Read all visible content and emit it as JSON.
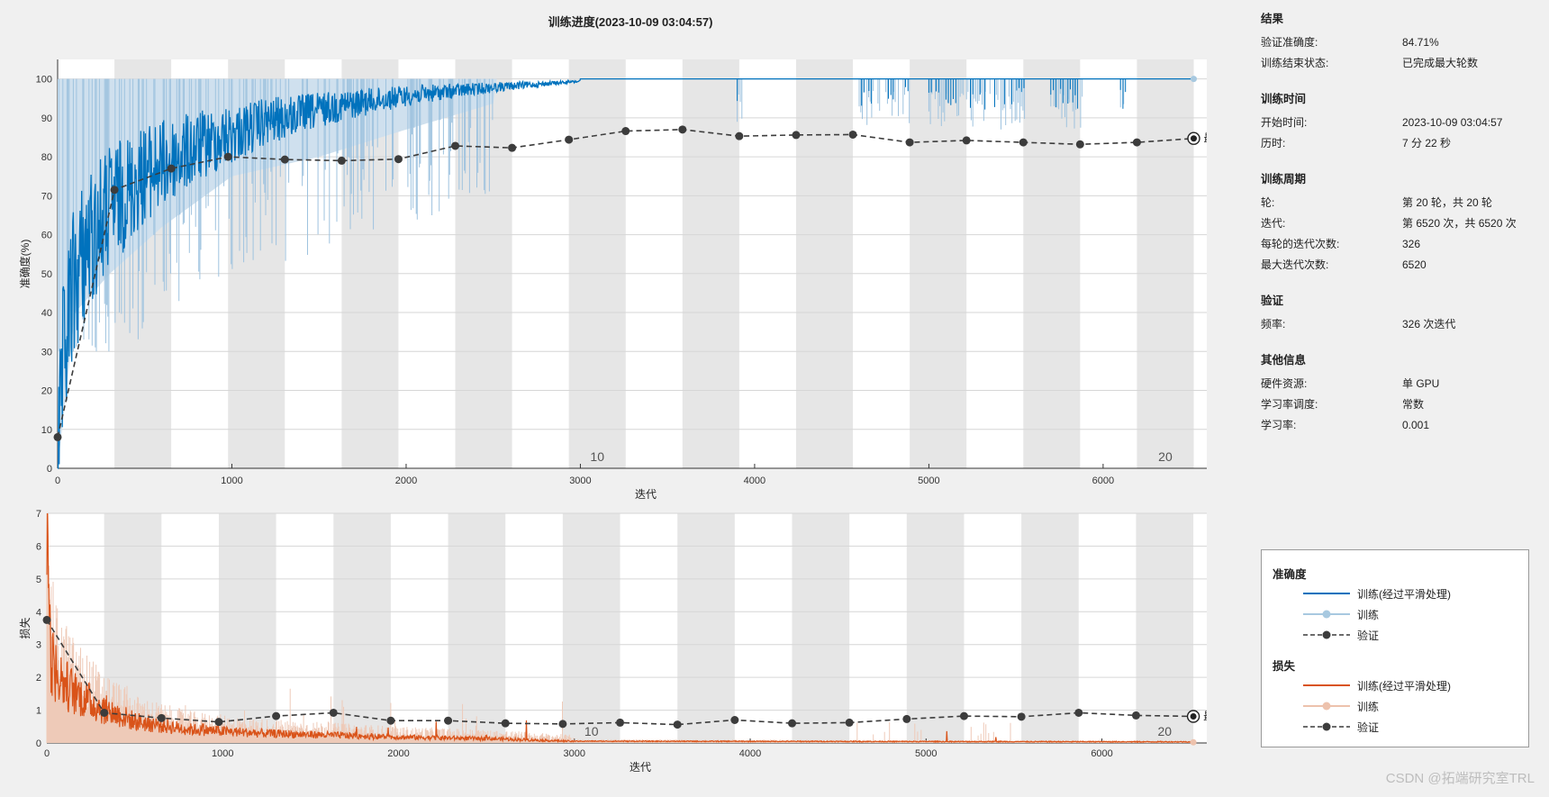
{
  "window": {
    "title": "训练进度(2023-10-09 03:04:57)"
  },
  "info_panel": {
    "sections": [
      {
        "title": "结果",
        "rows": [
          {
            "label": "验证准确度:",
            "value": "84.71%"
          },
          {
            "label": "训练结束状态:",
            "value": "已完成最大轮数"
          }
        ]
      },
      {
        "title": "训练时间",
        "rows": [
          {
            "label": "开始时间:",
            "value": "2023-10-09 03:04:57"
          },
          {
            "label": "历时:",
            "value": "7 分 22 秒"
          }
        ]
      },
      {
        "title": "训练周期",
        "rows": [
          {
            "label": "轮:",
            "value": "第 20 轮，共 20 轮"
          },
          {
            "label": "迭代:",
            "value": "第 6520 次，共 6520 次"
          },
          {
            "label": "每轮的迭代次数:",
            "value": "326"
          },
          {
            "label": "最大迭代次数:",
            "value": "6520"
          }
        ]
      },
      {
        "title": "验证",
        "rows": [
          {
            "label": "频率:",
            "value": "326 次迭代"
          }
        ]
      },
      {
        "title": "其他信息",
        "rows": [
          {
            "label": "硬件资源:",
            "value": "单 GPU"
          },
          {
            "label": "学习率调度:",
            "value": "常数"
          },
          {
            "label": "学习率:",
            "value": "0.001"
          }
        ]
      }
    ]
  },
  "legend": {
    "accuracy_title": "准确度",
    "loss_title": "损失",
    "train_smoothed": "训练(经过平滑处理)",
    "train": "训练",
    "validation": "验证",
    "colors": {
      "acc_smoothed": "#0072bd",
      "acc_raw": "#a8c9e0",
      "loss_smoothed": "#d95319",
      "loss_raw": "#edc2ad",
      "validation": "#3c3c3c"
    }
  },
  "watermark": "CSDN @拓端研究室TRL",
  "chart_data": [
    {
      "id": "accuracy",
      "type": "line",
      "title": "训练进度(2023-10-09 03:04:57)",
      "xlabel": "迭代",
      "ylabel": "准确度(%)",
      "xlim": [
        0,
        6750
      ],
      "ylim": [
        0,
        105
      ],
      "xticks": [
        0,
        1000,
        2000,
        3000,
        4000,
        5000,
        6000
      ],
      "yticks": [
        0,
        10,
        20,
        30,
        40,
        50,
        60,
        70,
        80,
        90,
        100
      ],
      "iterations_per_epoch": 326,
      "epochs": 20,
      "epoch_labels": [
        {
          "epoch": 10,
          "text": "10"
        },
        {
          "epoch": 20,
          "text": "20"
        }
      ],
      "final_label": "最终",
      "validation": {
        "x": [
          0,
          326,
          652,
          978,
          1304,
          1630,
          1956,
          2282,
          2608,
          2934,
          3260,
          3586,
          3912,
          4238,
          4564,
          4890,
          5216,
          5542,
          5868,
          6194,
          6520
        ],
        "y": [
          8,
          71.5,
          77,
          80,
          79.3,
          79,
          79.4,
          82.8,
          82.3,
          84.4,
          86.6,
          87,
          85.3,
          85.6,
          85.7,
          83.7,
          84.2,
          83.7,
          83.2,
          83.7,
          84.71
        ]
      },
      "train_smoothed_anchors": {
        "x": [
          0,
          30,
          80,
          150,
          300,
          500,
          800,
          1200,
          1600,
          2000,
          2500,
          3000,
          3500,
          6520
        ],
        "y": [
          5,
          35,
          55,
          65,
          75,
          82,
          87,
          92,
          95,
          97,
          98.5,
          99.5,
          100,
          100
        ]
      },
      "train_raw_band": {
        "x": [
          0,
          100,
          300,
          600,
          1000,
          1500,
          2000,
          2600,
          3000,
          6520
        ],
        "min": [
          0,
          40,
          50,
          62,
          75,
          80,
          87,
          95,
          100,
          100
        ]
      },
      "dip_regions": [
        [
          3900,
          3930
        ],
        [
          4600,
          4900
        ],
        [
          5000,
          5550
        ],
        [
          5700,
          5880
        ],
        [
          6100,
          6130
        ]
      ]
    },
    {
      "id": "loss",
      "type": "line",
      "xlabel": "迭代",
      "ylabel": "损失",
      "xlim": [
        0,
        6750
      ],
      "ylim": [
        0,
        7
      ],
      "xticks": [
        0,
        1000,
        2000,
        3000,
        4000,
        5000,
        6000
      ],
      "yticks": [
        0,
        1,
        2,
        3,
        4,
        5,
        6,
        7
      ],
      "iterations_per_epoch": 326,
      "epochs": 20,
      "epoch_labels": [
        {
          "epoch": 10,
          "text": "10"
        },
        {
          "epoch": 20,
          "text": "20"
        }
      ],
      "final_label": "最终",
      "validation": {
        "x": [
          0,
          326,
          652,
          978,
          1304,
          1630,
          1956,
          2282,
          2608,
          2934,
          3260,
          3586,
          3912,
          4238,
          4564,
          4890,
          5216,
          5542,
          5868,
          6194,
          6520
        ],
        "y": [
          3.75,
          0.92,
          0.76,
          0.64,
          0.82,
          0.92,
          0.68,
          0.68,
          0.6,
          0.58,
          0.62,
          0.56,
          0.7,
          0.6,
          0.62,
          0.73,
          0.82,
          0.8,
          0.92,
          0.84,
          0.81
        ]
      },
      "train_smoothed_anchors": {
        "x": [
          0,
          20,
          60,
          150,
          300,
          500,
          800,
          1200,
          1600,
          2000,
          2600,
          3000,
          6520
        ],
        "y": [
          6.8,
          2.2,
          1.7,
          1.3,
          0.9,
          0.55,
          0.35,
          0.25,
          0.2,
          0.15,
          0.1,
          0.04,
          0.02
        ]
      }
    }
  ]
}
